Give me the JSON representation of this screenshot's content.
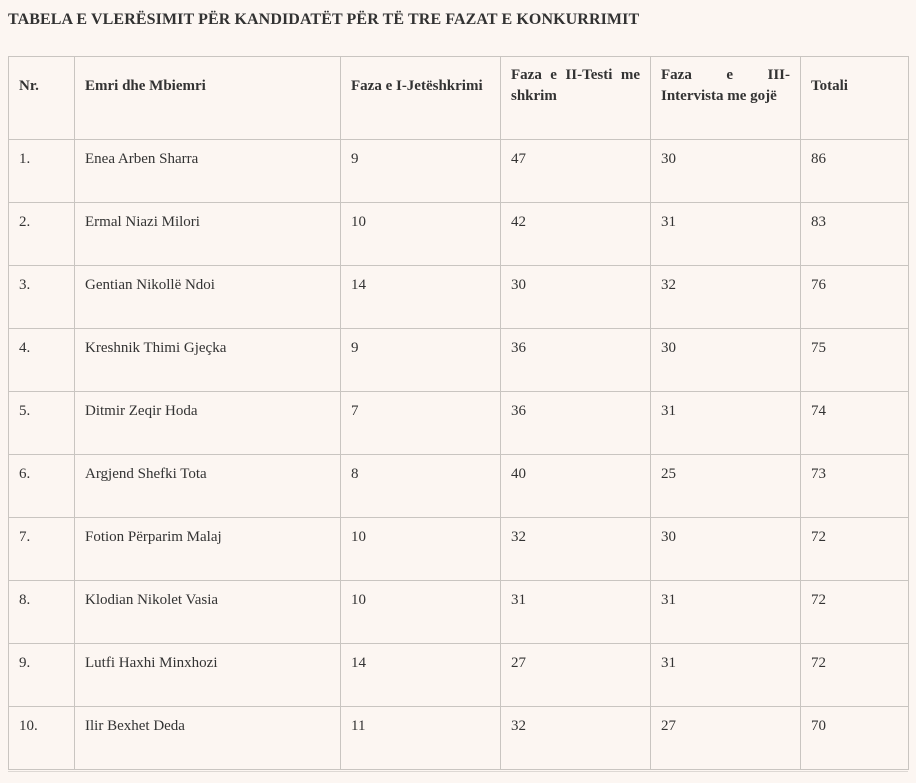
{
  "page": {
    "title": "TABELA E VLERËSIMIT PËR KANDIDATËT PËR TË TRE FAZAT E KONKURRIMIT"
  },
  "table": {
    "columns": [
      "Nr.",
      "Emri dhe Mbiemri",
      "Faza e I-Jetëshkrimi",
      "Faza e II-Testi me shkrim",
      "Faza e III-Intervista me gojë",
      "Totali"
    ],
    "rows": [
      [
        "1.",
        "Enea Arben Sharra",
        "9",
        "47",
        "30",
        "86"
      ],
      [
        "2.",
        "Ermal Niazi Milori",
        "10",
        "42",
        "31",
        "83"
      ],
      [
        "3.",
        "Gentian Nikollë Ndoi",
        "14",
        "30",
        "32",
        "76"
      ],
      [
        "4.",
        "Kreshnik Thimi Gjeçka",
        "9",
        "36",
        "30",
        "75"
      ],
      [
        "5.",
        "Ditmir Zeqir Hoda",
        "7",
        "36",
        "31",
        "74"
      ],
      [
        "6.",
        "Argjend Shefki Tota",
        "8",
        "40",
        "25",
        "73"
      ],
      [
        "7.",
        "Fotion Përparim Malaj",
        "10",
        "32",
        "30",
        "72"
      ],
      [
        "8.",
        "Klodian Nikolet Vasia",
        "10",
        "31",
        "31",
        "72"
      ],
      [
        "9.",
        "Lutfi Haxhi Minxhozi",
        "14",
        "27",
        "31",
        "72"
      ],
      [
        "10.",
        "Ilir Bexhet Deda",
        "11",
        "32",
        "27",
        "70"
      ]
    ]
  },
  "colors": {
    "page_background": "#FCF6F2",
    "table_border": "#C9C5C1",
    "text": "#333333",
    "title_text": "#323232"
  }
}
